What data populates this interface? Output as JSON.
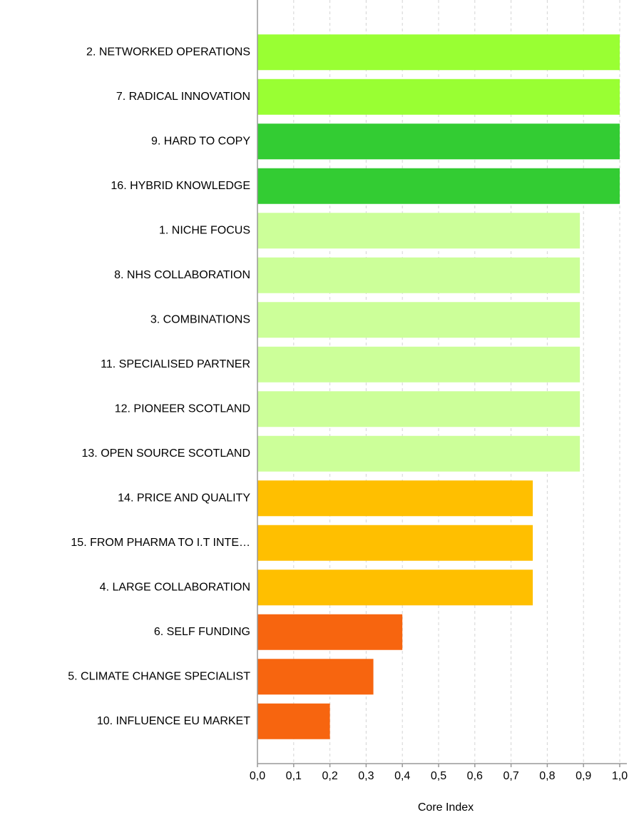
{
  "chart_data": {
    "type": "hbar",
    "x_label": "Core Index",
    "categories": [
      "2. NETWORKED OPERATIONS",
      "7. RADICAL INNOVATION",
      "9. HARD TO COPY",
      "16. HYBRID KNOWLEDGE",
      "1. NICHE FOCUS",
      "8. NHS COLLABORATION",
      "3. COMBINATIONS",
      "11. SPECIALISED PARTNER",
      "12. PIONEER SCOTLAND",
      "13. OPEN SOURCE SCOTLAND",
      "14. PRICE AND QUALITY",
      "15. FROM PHARMA TO I.T INTE…",
      "4. LARGE COLLABORATION",
      "6. SELF FUNDING",
      "5. CLIMATE CHANGE SPECIALIST",
      "10. INFLUENCE EU MARKET"
    ],
    "values": [
      1.0,
      1.0,
      1.0,
      1.0,
      0.89,
      0.89,
      0.89,
      0.89,
      0.89,
      0.89,
      0.76,
      0.76,
      0.76,
      0.4,
      0.32,
      0.2
    ],
    "colors": [
      "#99ff33",
      "#99ff33",
      "#33cc33",
      "#33cc33",
      "#ccff99",
      "#ccff99",
      "#ccff99",
      "#ccff99",
      "#ccff99",
      "#ccff99",
      "#ffbf00",
      "#ffbf00",
      "#ffbf00",
      "#f7650f",
      "#f7650f",
      "#f7650f"
    ],
    "xlim": [
      0,
      1.0
    ],
    "xticks": [
      {
        "value": 0,
        "label": "0,0"
      },
      {
        "value": 0.1,
        "label": "0,1"
      },
      {
        "value": 0.2,
        "label": "0,2"
      },
      {
        "value": 0.3,
        "label": "0,3"
      },
      {
        "value": 0.4,
        "label": "0,4"
      },
      {
        "value": 0.5,
        "label": "0,5"
      },
      {
        "value": 0.6,
        "label": "0,6"
      },
      {
        "value": 0.7,
        "label": "0,7"
      },
      {
        "value": 0.8,
        "label": "0,8"
      },
      {
        "value": 0.9,
        "label": "0,9"
      },
      {
        "value": 1.0,
        "label": "1,0"
      }
    ],
    "grid": true
  }
}
